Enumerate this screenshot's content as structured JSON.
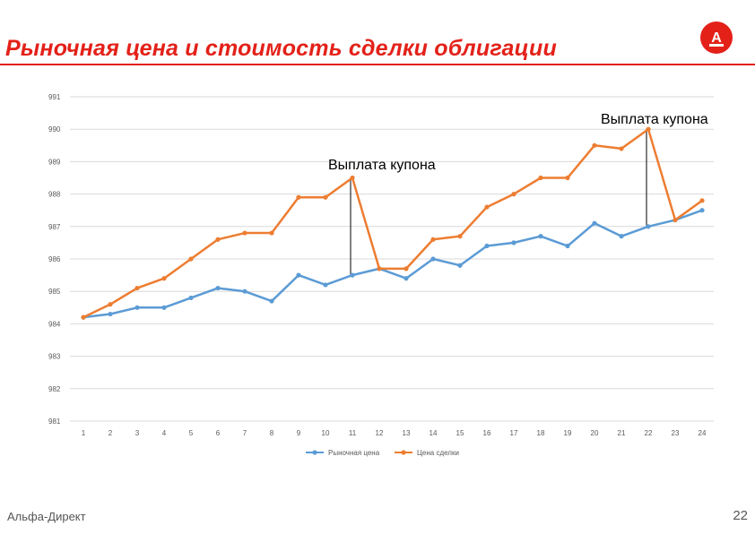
{
  "slide": {
    "title": "Рыночная цена и стоимость сделки облигации",
    "footer_brand": "Альфа-Директ",
    "page_number": "22",
    "accent_color": "#e32119"
  },
  "logo": {
    "icon": "alfa-bank-logo-icon",
    "letter": "А",
    "color": "#e32119"
  },
  "chart_data": {
    "type": "line",
    "x": [
      1,
      2,
      3,
      4,
      5,
      6,
      7,
      8,
      9,
      10,
      11,
      12,
      13,
      14,
      15,
      16,
      17,
      18,
      19,
      20,
      21,
      22,
      23,
      24
    ],
    "ylim": [
      981,
      991
    ],
    "yticks": [
      981,
      982,
      983,
      984,
      985,
      986,
      987,
      988,
      989,
      990,
      991
    ],
    "grid": true,
    "legend_position": "bottom",
    "series": [
      {
        "name": "Рыночная цена",
        "color": "#5b9bd5",
        "values": [
          984.2,
          984.3,
          984.5,
          984.5,
          984.8,
          985.1,
          985.0,
          984.7,
          985.5,
          985.2,
          985.5,
          985.7,
          985.4,
          986.0,
          985.8,
          986.4,
          986.5,
          986.7,
          986.4,
          987.1,
          986.7,
          987.0,
          987.2,
          987.5
        ]
      },
      {
        "name": "Цена сделки",
        "color": "#ed7d31",
        "values": [
          984.2,
          984.6,
          985.1,
          985.4,
          986.0,
          986.6,
          986.8,
          986.8,
          987.9,
          987.9,
          988.5,
          985.7,
          985.7,
          986.6,
          986.7,
          987.6,
          988.0,
          988.5,
          988.5,
          989.5,
          989.4,
          990.0,
          987.2,
          987.8
        ]
      }
    ],
    "annotations": [
      {
        "text": "Выплата купона",
        "x": 11,
        "from": 985.5,
        "to": 988.5
      },
      {
        "text": "Выплата купона",
        "x": 22,
        "from": 987.0,
        "to": 990.0
      }
    ]
  }
}
